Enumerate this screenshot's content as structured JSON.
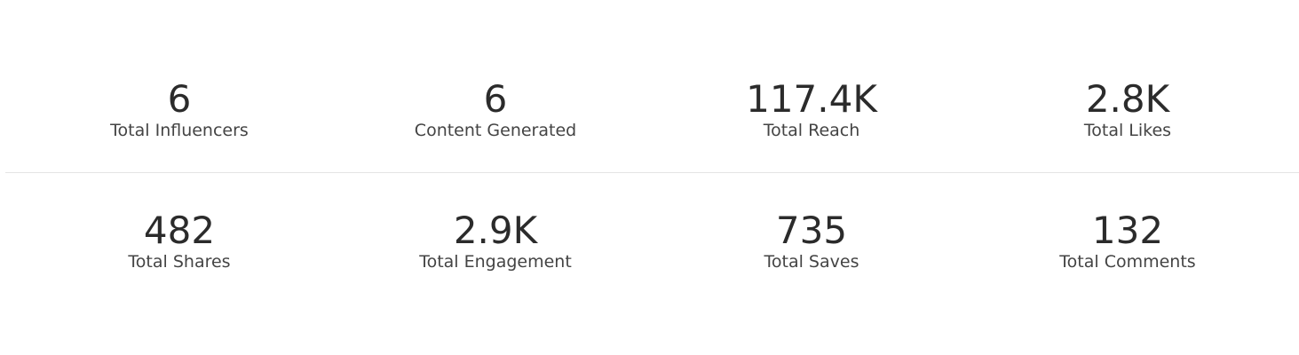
{
  "rows": [
    [
      {
        "value": "6",
        "label": "Total Influencers"
      },
      {
        "value": "6",
        "label": "Content Generated"
      },
      {
        "value": "117.4K",
        "label": "Total Reach"
      },
      {
        "value": "2.8K",
        "label": "Total Likes"
      }
    ],
    [
      {
        "value": "482",
        "label": "Total Shares"
      },
      {
        "value": "2.9K",
        "label": "Total Engagement"
      },
      {
        "value": "735",
        "label": "Total Saves"
      },
      {
        "value": "132",
        "label": "Total Comments"
      }
    ]
  ]
}
